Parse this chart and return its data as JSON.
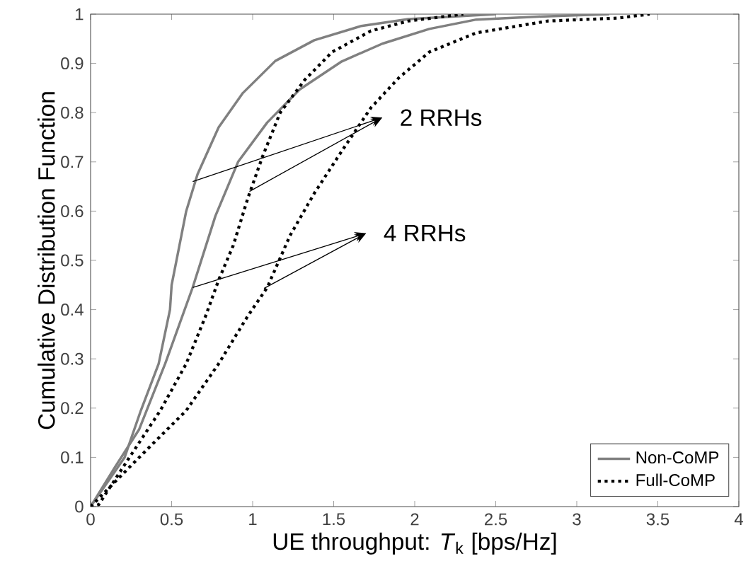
{
  "chart_data": {
    "type": "line",
    "xlabel": "UE throughput: *T*$_{k}$ [bps/Hz]",
    "ylabel": "Cumulative Distribution Function",
    "xlim": [
      0,
      4
    ],
    "ylim": [
      0,
      1
    ],
    "xticks": [
      0,
      0.5,
      1,
      1.5,
      2,
      2.5,
      3,
      3.5,
      4
    ],
    "yticks": [
      0,
      0.1,
      0.2,
      0.3,
      0.4,
      0.5,
      0.6,
      0.7,
      0.8,
      0.9,
      1
    ],
    "grid": false,
    "legend": "bottom right",
    "marker": "none",
    "annotations": [
      {
        "text": "2 RRHs",
        "x": 0.63,
        "y": 0.66
      },
      {
        "text": "4 RRHs",
        "x": 0.63,
        "y": 0.445
      }
    ],
    "series": [
      {
        "name": "Non-CoMP",
        "color": "#808080",
        "line_style": "solid",
        "x": [
          0,
          0.21,
          0.31,
          0.42,
          0.49,
          0.5,
          0.59,
          0.66,
          0.79,
          0.94,
          1.14,
          1.38,
          1.67,
          1.96,
          2.5
        ],
        "values": [
          0,
          0.1,
          0.195,
          0.29,
          0.4,
          0.45,
          0.6,
          0.675,
          0.77,
          0.84,
          0.905,
          0.947,
          0.976,
          0.99,
          1
        ]
      },
      {
        "color": "#808080",
        "line_style": "solid",
        "x": [
          0,
          0.15,
          0.3,
          0.46,
          0.63,
          0.77,
          0.91,
          1.09,
          1.29,
          1.55,
          1.8,
          2.09,
          2.38,
          2.76,
          3.2
        ],
        "values": [
          0,
          0.08,
          0.157,
          0.29,
          0.445,
          0.59,
          0.7,
          0.78,
          0.847,
          0.904,
          0.94,
          0.97,
          0.989,
          0.995,
          1
        ]
      },
      {
        "name": "Full-CoMP",
        "color": "#000000",
        "line_style": "dotted",
        "x": [
          0,
          0.05,
          0.24,
          0.43,
          0.59,
          0.71,
          0.79,
          0.88,
          0.97,
          1.06,
          1.17,
          1.32,
          1.49,
          1.73,
          1.96,
          2.3
        ],
        "values": [
          0,
          0.004,
          0.1,
          0.195,
          0.29,
          0.387,
          0.46,
          0.53,
          0.626,
          0.71,
          0.8,
          0.866,
          0.923,
          0.966,
          0.986,
          1
        ]
      },
      {
        "color": "#000000",
        "line_style": "dotted",
        "x": [
          0,
          0.3,
          0.59,
          0.79,
          0.97,
          1.09,
          1.23,
          1.38,
          1.55,
          1.73,
          1.9,
          2.09,
          2.38,
          2.82,
          3.25,
          3.45
        ],
        "values": [
          0,
          0.1,
          0.195,
          0.29,
          0.387,
          0.445,
          0.55,
          0.636,
          0.722,
          0.81,
          0.87,
          0.923,
          0.962,
          0.986,
          0.992,
          1
        ]
      }
    ]
  }
}
